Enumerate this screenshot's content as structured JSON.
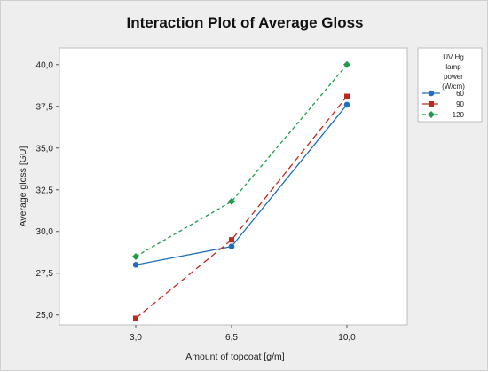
{
  "chart_data": {
    "type": "line",
    "title": "Interaction Plot of Average Gloss",
    "xlabel": "Amount of topcoat [g/m]",
    "ylabel": "Average gloss [GU]",
    "categories": [
      "3,0",
      "6,5",
      "10,0"
    ],
    "yticks": [
      "25,0",
      "27,5",
      "30,0",
      "32,5",
      "35,0",
      "37,5",
      "40,0"
    ],
    "ylim": [
      24.4,
      41.0
    ],
    "grid": false,
    "legend": {
      "title": [
        "UV Hg",
        "lamp",
        "power",
        "(W/cm)"
      ],
      "placement": "right"
    },
    "series": [
      {
        "name": "60",
        "values": [
          28.0,
          29.1,
          37.6
        ],
        "color": "#1f6fbf",
        "marker": "circle",
        "dash": "solid"
      },
      {
        "name": "90",
        "values": [
          24.8,
          29.5,
          38.1
        ],
        "color": "#c0281e",
        "marker": "square",
        "dash": "long-dash"
      },
      {
        "name": "120",
        "values": [
          28.5,
          31.8,
          40.0
        ],
        "color": "#1e9b4a",
        "marker": "diamond",
        "dash": "short-dash"
      }
    ]
  }
}
